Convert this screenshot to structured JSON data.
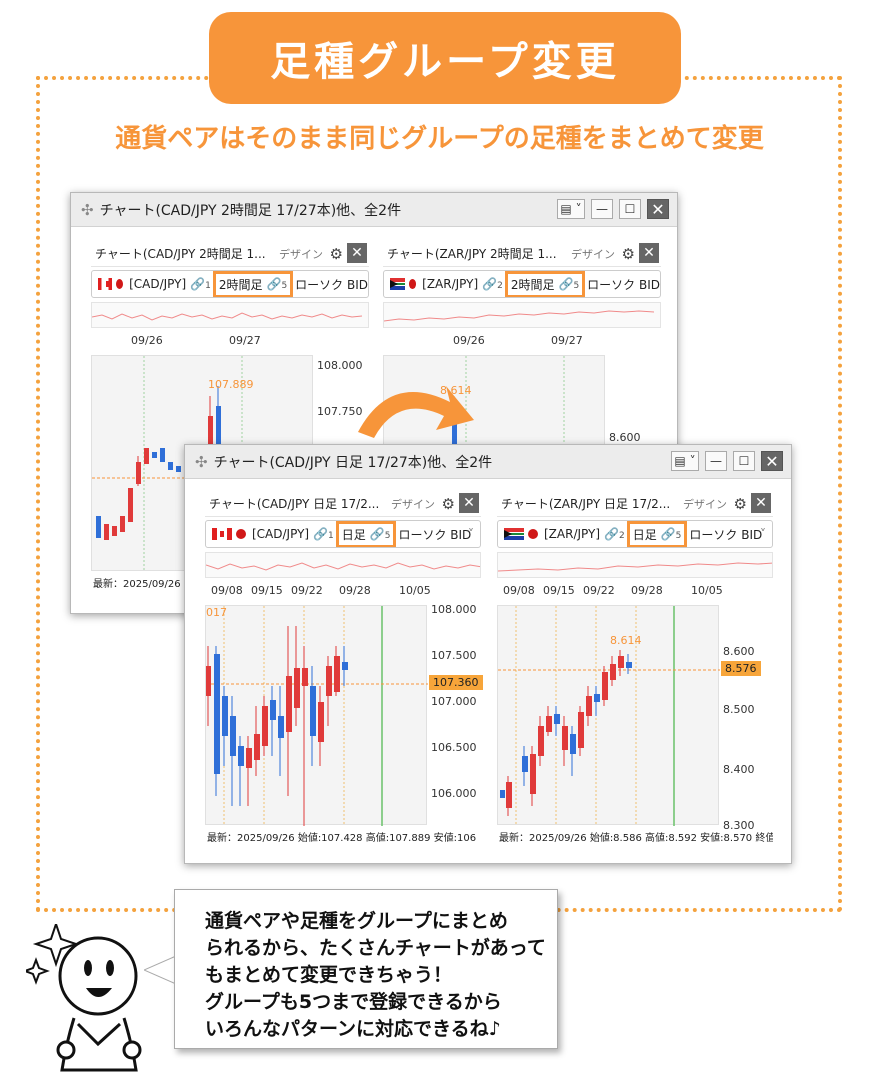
{
  "banner": {
    "title": "足種グループ変更",
    "subtitle": "通貨ペアはそのまま同じグループの足種をまとめて変更"
  },
  "back_window": {
    "title": "チャート(CAD/JPY 2時間足 17/27本)他、全2件",
    "panes": [
      {
        "title": "チャート(CAD/JPY 2時間足 1...",
        "design": "デザイン",
        "pair": "[CAD/JPY]",
        "link_num": "1",
        "timeframe": "2時間足",
        "group_num": "5",
        "after": "ローソク BID",
        "x_ticks": [
          "09/26",
          "09/27"
        ],
        "y_ticks": [
          "108.000",
          "107.750"
        ],
        "high_label": "107.889",
        "status": "最新：2025/09/26"
      },
      {
        "title": "チャート(ZAR/JPY 2時間足 1...",
        "design": "デザイン",
        "pair": "[ZAR/JPY]",
        "link_num": "2",
        "timeframe": "2時間足",
        "group_num": "5",
        "after": "ローソク BID",
        "x_ticks": [
          "09/26",
          "09/27"
        ],
        "y_ticks": [
          "8.600"
        ],
        "high_label": "8.614"
      }
    ]
  },
  "front_window": {
    "title": "チャート(CAD/JPY 日足 17/27本)他、全2件",
    "panes": [
      {
        "title": "チャート(CAD/JPY 日足 17/2...",
        "design": "デザイン",
        "pair": "[CAD/JPY]",
        "link_num": "1",
        "timeframe": "日足",
        "group_num": "5",
        "after": "ローソク BID",
        "x_ticks": [
          "09/08",
          "09/15",
          "09/22",
          "09/28",
          "10/05"
        ],
        "y_ticks": [
          "108.000",
          "107.500",
          "107.000",
          "106.500",
          "106.000"
        ],
        "price_tag": "107.360",
        "left_label": "017",
        "status": "最新：2025/09/26 始値:107.428 高値:107.889 安値:106"
      },
      {
        "title": "チャート(ZAR/JPY 日足 17/2...",
        "design": "デザイン",
        "pair": "[ZAR/JPY]",
        "link_num": "2",
        "timeframe": "日足",
        "group_num": "5",
        "after": "ローソク BID",
        "x_ticks": [
          "09/08",
          "09/15",
          "09/22",
          "09/28",
          "10/05"
        ],
        "y_ticks": [
          "8.600",
          "8.500",
          "8.400",
          "8.300"
        ],
        "price_tag": "8.576",
        "high_label": "8.614",
        "status": "最新：2025/09/26 始値:8.586 高値:8.592 安値:8.570 終值"
      }
    ]
  },
  "speech": {
    "lines": [
      "通貨ペアや足種をグループにまとめ",
      "られるから、たくさんチャートがあって",
      "もまとめて変更できちゃう！",
      "グループも5つまで登録できるから",
      "いろんなパターンに対応できるね♪"
    ]
  },
  "colors": {
    "accent": "#f7953a",
    "bull": "#e03a3a",
    "bear": "#2f6fd8"
  },
  "icons": [
    "move-icon",
    "window-menu-icon",
    "minimize-icon",
    "maximize-icon",
    "close-icon",
    "gear-icon",
    "link-icon",
    "group-link-icon",
    "curved-arrow-icon",
    "sparkle-icon"
  ]
}
